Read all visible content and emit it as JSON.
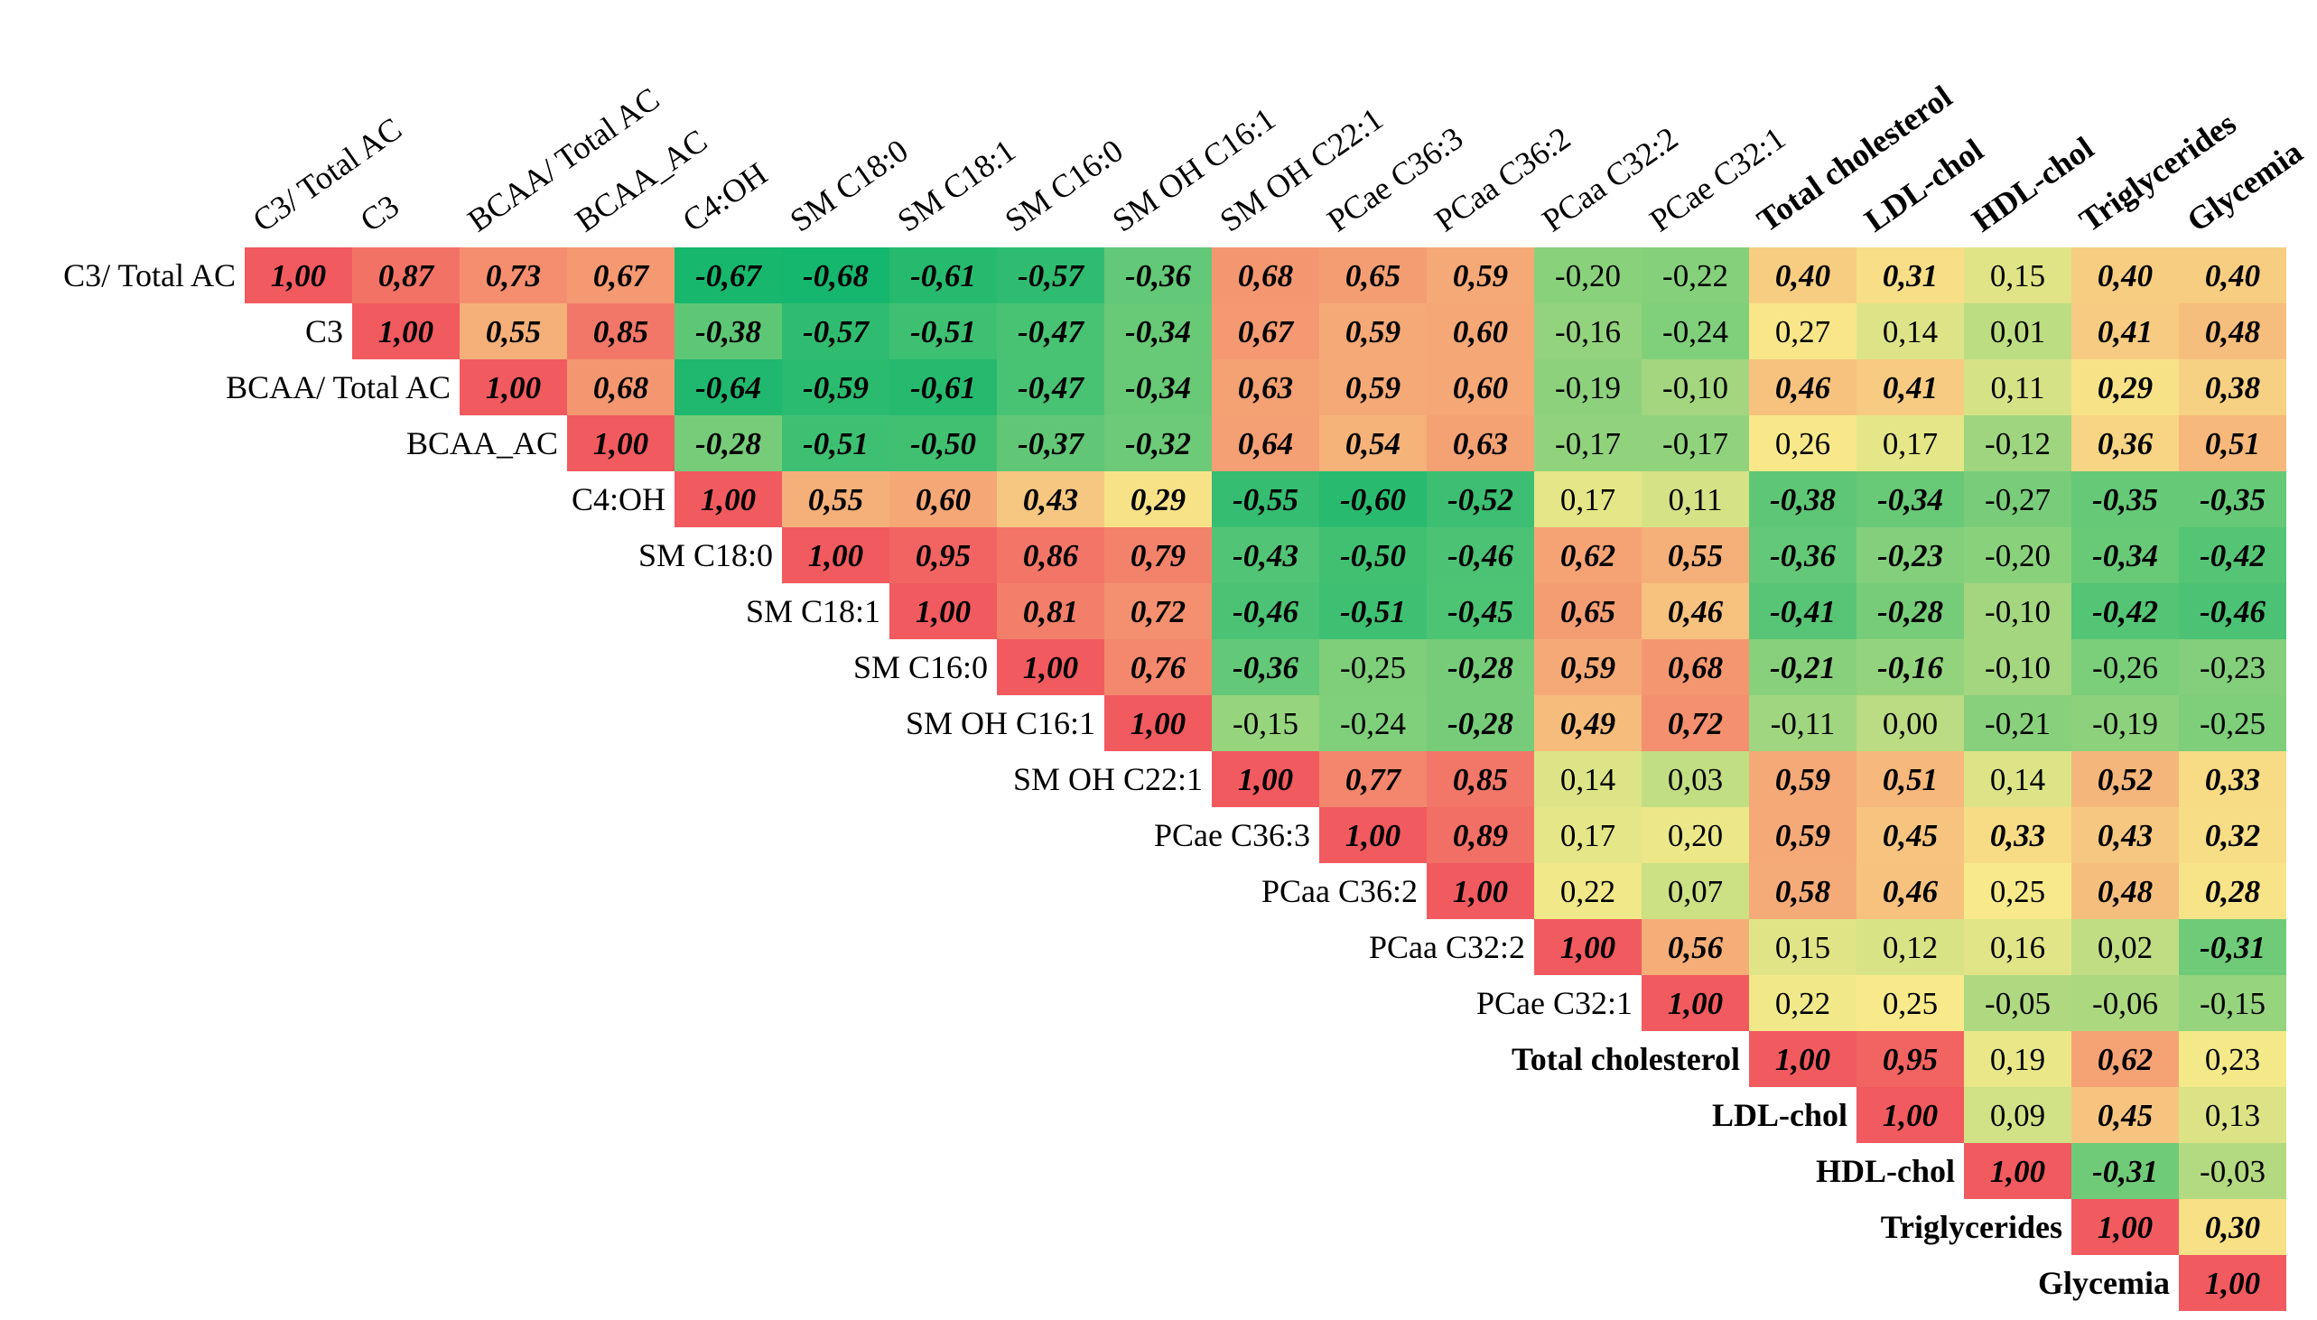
{
  "chart_data": {
    "type": "heatmap",
    "title": "",
    "variables": [
      "C3/ Total AC",
      "C3",
      "BCAA/ Total AC",
      "BCAA_AC",
      "C4:OH",
      "SM C18:0",
      "SM C18:1",
      "SM C16:0",
      "SM OH C16:1",
      "SM OH C22:1",
      "PCae C36:3",
      "PCaa C36:2",
      "PCaa C32:2",
      "PCae C32:1",
      "Total cholesterol",
      "LDL-chol",
      "HDL-chol",
      "Triglycerides",
      "Glycemia"
    ],
    "bold_labels": [
      "Total cholesterol",
      "LDL-chol",
      "HDL-chol",
      "Triglycerides",
      "Glycemia"
    ],
    "scale": {
      "min": -0.7,
      "mid": 0.25,
      "max": 1.0,
      "min_color": "#10b56c",
      "mid_color": "#f8ea8a",
      "max_color": "#f15a5f"
    },
    "rows": [
      {
        "values": [
          "1,00",
          "0,87",
          "0,73",
          "0,67",
          "-0,67",
          "-0,68",
          "-0,61",
          "-0,57",
          "-0,36",
          "0,68",
          "0,65",
          "0,59",
          "-0,20",
          "-0,22",
          "0,40",
          "0,31",
          "0,15",
          "0,40",
          "0,40"
        ],
        "significant": [
          1,
          1,
          1,
          1,
          1,
          1,
          1,
          1,
          1,
          1,
          1,
          1,
          0,
          0,
          1,
          1,
          0,
          1,
          1
        ]
      },
      {
        "values": [
          "1,00",
          "0,55",
          "0,85",
          "-0,38",
          "-0,57",
          "-0,51",
          "-0,47",
          "-0,34",
          "0,67",
          "0,59",
          "0,60",
          "-0,16",
          "-0,24",
          "0,27",
          "0,14",
          "0,01",
          "0,41",
          "0,48"
        ],
        "significant": [
          1,
          1,
          1,
          1,
          1,
          1,
          1,
          1,
          1,
          1,
          1,
          0,
          0,
          0,
          0,
          0,
          1,
          1
        ]
      },
      {
        "values": [
          "1,00",
          "0,68",
          "-0,64",
          "-0,59",
          "-0,61",
          "-0,47",
          "-0,34",
          "0,63",
          "0,59",
          "0,60",
          "-0,19",
          "-0,10",
          "0,46",
          "0,41",
          "0,11",
          "0,29",
          "0,38"
        ],
        "significant": [
          1,
          1,
          1,
          1,
          1,
          1,
          1,
          1,
          1,
          1,
          0,
          0,
          1,
          1,
          0,
          1,
          1
        ]
      },
      {
        "values": [
          "1,00",
          "-0,28",
          "-0,51",
          "-0,50",
          "-0,37",
          "-0,32",
          "0,64",
          "0,54",
          "0,63",
          "-0,17",
          "-0,17",
          "0,26",
          "0,17",
          "-0,12",
          "0,36",
          "0,51"
        ],
        "significant": [
          1,
          1,
          1,
          1,
          1,
          1,
          1,
          1,
          1,
          0,
          0,
          0,
          0,
          0,
          1,
          1
        ]
      },
      {
        "values": [
          "1,00",
          "0,55",
          "0,60",
          "0,43",
          "0,29",
          "-0,55",
          "-0,60",
          "-0,52",
          "0,17",
          "0,11",
          "-0,38",
          "-0,34",
          "-0,27",
          "-0,35",
          "-0,35"
        ],
        "significant": [
          1,
          1,
          1,
          1,
          1,
          1,
          1,
          1,
          0,
          0,
          1,
          1,
          0,
          1,
          1
        ]
      },
      {
        "values": [
          "1,00",
          "0,95",
          "0,86",
          "0,79",
          "-0,43",
          "-0,50",
          "-0,46",
          "0,62",
          "0,55",
          "-0,36",
          "-0,23",
          "-0,20",
          "-0,34",
          "-0,42"
        ],
        "significant": [
          1,
          1,
          1,
          1,
          1,
          1,
          1,
          1,
          1,
          1,
          1,
          0,
          1,
          1
        ]
      },
      {
        "values": [
          "1,00",
          "0,81",
          "0,72",
          "-0,46",
          "-0,51",
          "-0,45",
          "0,65",
          "0,46",
          "-0,41",
          "-0,28",
          "-0,10",
          "-0,42",
          "-0,46"
        ],
        "significant": [
          1,
          1,
          1,
          1,
          1,
          1,
          1,
          1,
          1,
          1,
          0,
          1,
          1
        ]
      },
      {
        "values": [
          "1,00",
          "0,76",
          "-0,36",
          "-0,25",
          "-0,28",
          "0,59",
          "0,68",
          "-0,21",
          "-0,16",
          "-0,10",
          "-0,26",
          "-0,23"
        ],
        "significant": [
          1,
          1,
          1,
          0,
          1,
          1,
          1,
          1,
          1,
          0,
          0,
          0
        ]
      },
      {
        "values": [
          "1,00",
          "-0,15",
          "-0,24",
          "-0,28",
          "0,49",
          "0,72",
          "-0,11",
          "0,00",
          "-0,21",
          "-0,19",
          "-0,25"
        ],
        "significant": [
          1,
          0,
          0,
          1,
          1,
          1,
          0,
          0,
          0,
          0,
          0
        ]
      },
      {
        "values": [
          "1,00",
          "0,77",
          "0,85",
          "0,14",
          "0,03",
          "0,59",
          "0,51",
          "0,14",
          "0,52",
          "0,33"
        ],
        "significant": [
          1,
          1,
          1,
          0,
          0,
          1,
          1,
          0,
          1,
          1
        ]
      },
      {
        "values": [
          "1,00",
          "0,89",
          "0,17",
          "0,20",
          "0,59",
          "0,45",
          "0,33",
          "0,43",
          "0,32"
        ],
        "significant": [
          1,
          1,
          0,
          0,
          1,
          1,
          1,
          1,
          1
        ]
      },
      {
        "values": [
          "1,00",
          "0,22",
          "0,07",
          "0,58",
          "0,46",
          "0,25",
          "0,48",
          "0,28"
        ],
        "significant": [
          1,
          0,
          0,
          1,
          1,
          0,
          1,
          1
        ]
      },
      {
        "values": [
          "1,00",
          "0,56",
          "0,15",
          "0,12",
          "0,16",
          "0,02",
          "-0,31"
        ],
        "significant": [
          1,
          1,
          0,
          0,
          0,
          0,
          1
        ]
      },
      {
        "values": [
          "1,00",
          "0,22",
          "0,25",
          "-0,05",
          "-0,06",
          "-0,15"
        ],
        "significant": [
          1,
          0,
          0,
          0,
          0,
          0
        ]
      },
      {
        "values": [
          "1,00",
          "0,95",
          "0,19",
          "0,62",
          "0,23"
        ],
        "significant": [
          1,
          1,
          0,
          1,
          0
        ]
      },
      {
        "values": [
          "1,00",
          "0,09",
          "0,45",
          "0,13"
        ],
        "significant": [
          1,
          0,
          1,
          0
        ]
      },
      {
        "values": [
          "1,00",
          "-0,31",
          "-0,03"
        ],
        "significant": [
          1,
          1,
          0
        ]
      },
      {
        "values": [
          "1,00",
          "0,30"
        ],
        "significant": [
          1,
          1
        ]
      },
      {
        "values": [
          "1,00"
        ],
        "significant": [
          1
        ]
      }
    ]
  }
}
